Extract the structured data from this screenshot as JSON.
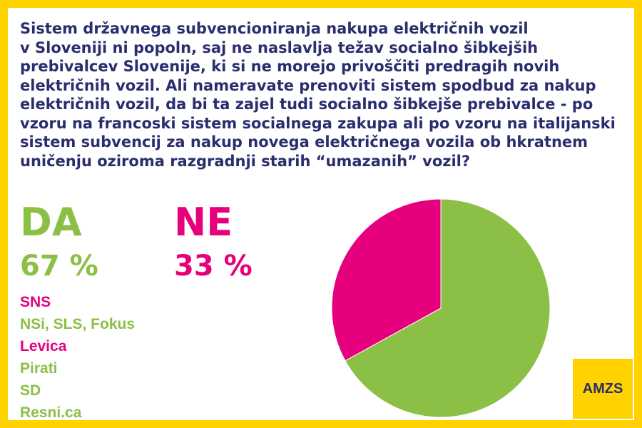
{
  "question": "Sistem državnega subvencioniranja nakupa električnih vozil\nv Sloveniji ni popoln, saj ne naslavlja težav socialno šibkejših\nprebivalcev Slovenije, ki si ne morejo privoščiti predragih novih\nelektričnih vozil. Ali nameravate prenoviti sistem spodbud za nakup\nelektričnih vozil, da bi ta zajel tudi socialno šibkejše prebivalce - po\nvzoru na francoski sistem socialnega zakupa ali po vzoru na italijanski\nsistem subvencij za nakup novega električnega vozila ob hkratnem\nuničenju oziroma razgradnji starih “umazanih” vozil?",
  "colors": {
    "yes": "#8cbf45",
    "no": "#e6007e",
    "title": "#2a2d6e",
    "frame": "#ffd200",
    "logo_bg": "#ffd200",
    "logo_text": "#2a2d6e"
  },
  "answers": {
    "yes": {
      "label": "DA",
      "percent_text": "67 %"
    },
    "no": {
      "label": "NE",
      "percent_text": "33 %"
    }
  },
  "parties": [
    {
      "name": "SNS",
      "answer": "no"
    },
    {
      "name": "NSi, SLS, Fokus",
      "answer": "yes"
    },
    {
      "name": "Levica",
      "answer": "no"
    },
    {
      "name": "Pirati",
      "answer": "yes"
    },
    {
      "name": "SD",
      "answer": "yes"
    },
    {
      "name": "Resni.ca",
      "answer": "yes"
    }
  ],
  "chart_data": {
    "type": "pie",
    "categories": [
      "DA",
      "NE"
    ],
    "values": [
      67,
      33
    ],
    "colors": [
      "#8cbf45",
      "#e6007e"
    ],
    "start": "top",
    "direction": "clockwise"
  },
  "logo": {
    "text": "AMZS"
  }
}
